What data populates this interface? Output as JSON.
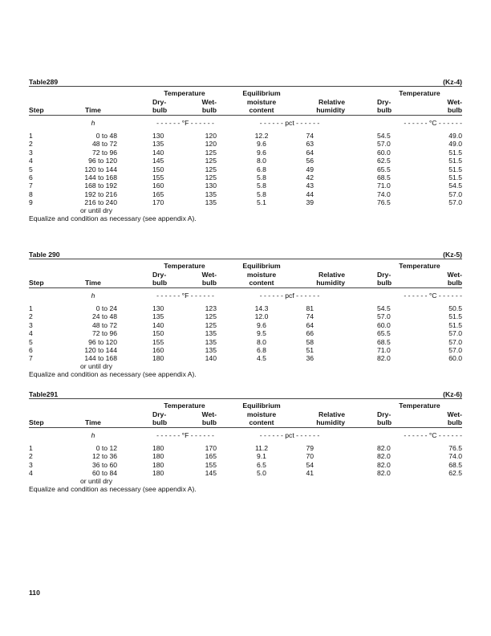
{
  "tables": [
    {
      "title": "Table289",
      "code": "(Kz-4)",
      "units": {
        "time": "h",
        "f": "- - - - - - °F - - - - - -",
        "pct": "- - - - - - pct - - - - - -",
        "c": "- - - - - - °C - - - - - -"
      },
      "rows": [
        [
          "1",
          "0 to 48",
          "130",
          "120",
          "12.2",
          "74",
          "54.5",
          "49.0"
        ],
        [
          "2",
          "48 to 72",
          "135",
          "120",
          "9.6",
          "63",
          "57.0",
          "49.0"
        ],
        [
          "3",
          "72 to 96",
          "140",
          "125",
          "9.6",
          "64",
          "60.0",
          "51.5"
        ],
        [
          "4",
          "96 to 120",
          "145",
          "125",
          "8.0",
          "56",
          "62.5",
          "51.5"
        ],
        [
          "5",
          "120 to 144",
          "150",
          "125",
          "6.8",
          "49",
          "65.5",
          "51.5"
        ],
        [
          "6",
          "144 to 168",
          "155",
          "125",
          "5.8",
          "42",
          "68.5",
          "51.5"
        ],
        [
          "7",
          "168 to 192",
          "160",
          "130",
          "5.8",
          "43",
          "71.0",
          "54.5"
        ],
        [
          "8",
          "192 to 216",
          "165",
          "135",
          "5.8",
          "44",
          "74.0",
          "57.0"
        ],
        [
          "9",
          "216 to 240",
          "170",
          "135",
          "5.1",
          "39",
          "76.5",
          "57.0"
        ]
      ]
    },
    {
      "title": "Table 290",
      "code": "(Kz-5)",
      "units": {
        "time": "h",
        "f": "- - - - - - °F - - - - - -",
        "pct": "- - - - - - pcf - - - - - -",
        "c": "- - - - - - °C - - - - - -"
      },
      "rows": [
        [
          "1",
          "0 to 24",
          "130",
          "123",
          "14.3",
          "81",
          "54.5",
          "50.5"
        ],
        [
          "2",
          "24 to 48",
          "135",
          "125",
          "12.0",
          "74",
          "57.0",
          "51.5"
        ],
        [
          "3",
          "48 to 72",
          "140",
          "125",
          "9.6",
          "64",
          "60.0",
          "51.5"
        ],
        [
          "4",
          "72 to 96",
          "150",
          "135",
          "9.5",
          "66",
          "65.5",
          "57.0"
        ],
        [
          "5",
          "96 to 120",
          "155",
          "135",
          "8.0",
          "58",
          "68.5",
          "57.0"
        ],
        [
          "6",
          "120 to 144",
          "160",
          "135",
          "6.8",
          "51",
          "71.0",
          "57.0"
        ],
        [
          "7",
          "144 to 168",
          "180",
          "140",
          "4.5",
          "36",
          "82.0",
          "60.0"
        ]
      ]
    },
    {
      "title": "Table291",
      "code": "(Kz-6)",
      "units": {
        "time": "h",
        "f": "- - - - - - °F - - - - - -",
        "pct": "- - - - - - pct - - - - - -",
        "c": "- - - - - - °C - - - - - -"
      },
      "rows": [
        [
          "1",
          "0 to 12",
          "180",
          "170",
          "11.2",
          "79",
          "82.0",
          "76.5"
        ],
        [
          "2",
          "12 to 36",
          "180",
          "165",
          "9.1",
          "70",
          "82.0",
          "74.0"
        ],
        [
          "3",
          "36 to 60",
          "180",
          "155",
          "6.5",
          "54",
          "82.0",
          "68.5"
        ],
        [
          "4",
          "60 to 84",
          "180",
          "145",
          "5.0",
          "41",
          "82.0",
          "62.5"
        ]
      ]
    }
  ],
  "headers": {
    "step": "Step",
    "time": "Time",
    "temperature": "Temperature",
    "dry": "Dry-",
    "wet": "Wet-",
    "bulb": "bulb",
    "equilibrium": "Equilibrium",
    "moisture": "moisture",
    "content": "content",
    "relative": "Relative",
    "humidity": "humidity"
  },
  "until_dry": "or  until  dry",
  "footnote": "Equalize  and  condition  as  necessary  (see  appendix  A).",
  "page_number": "110"
}
